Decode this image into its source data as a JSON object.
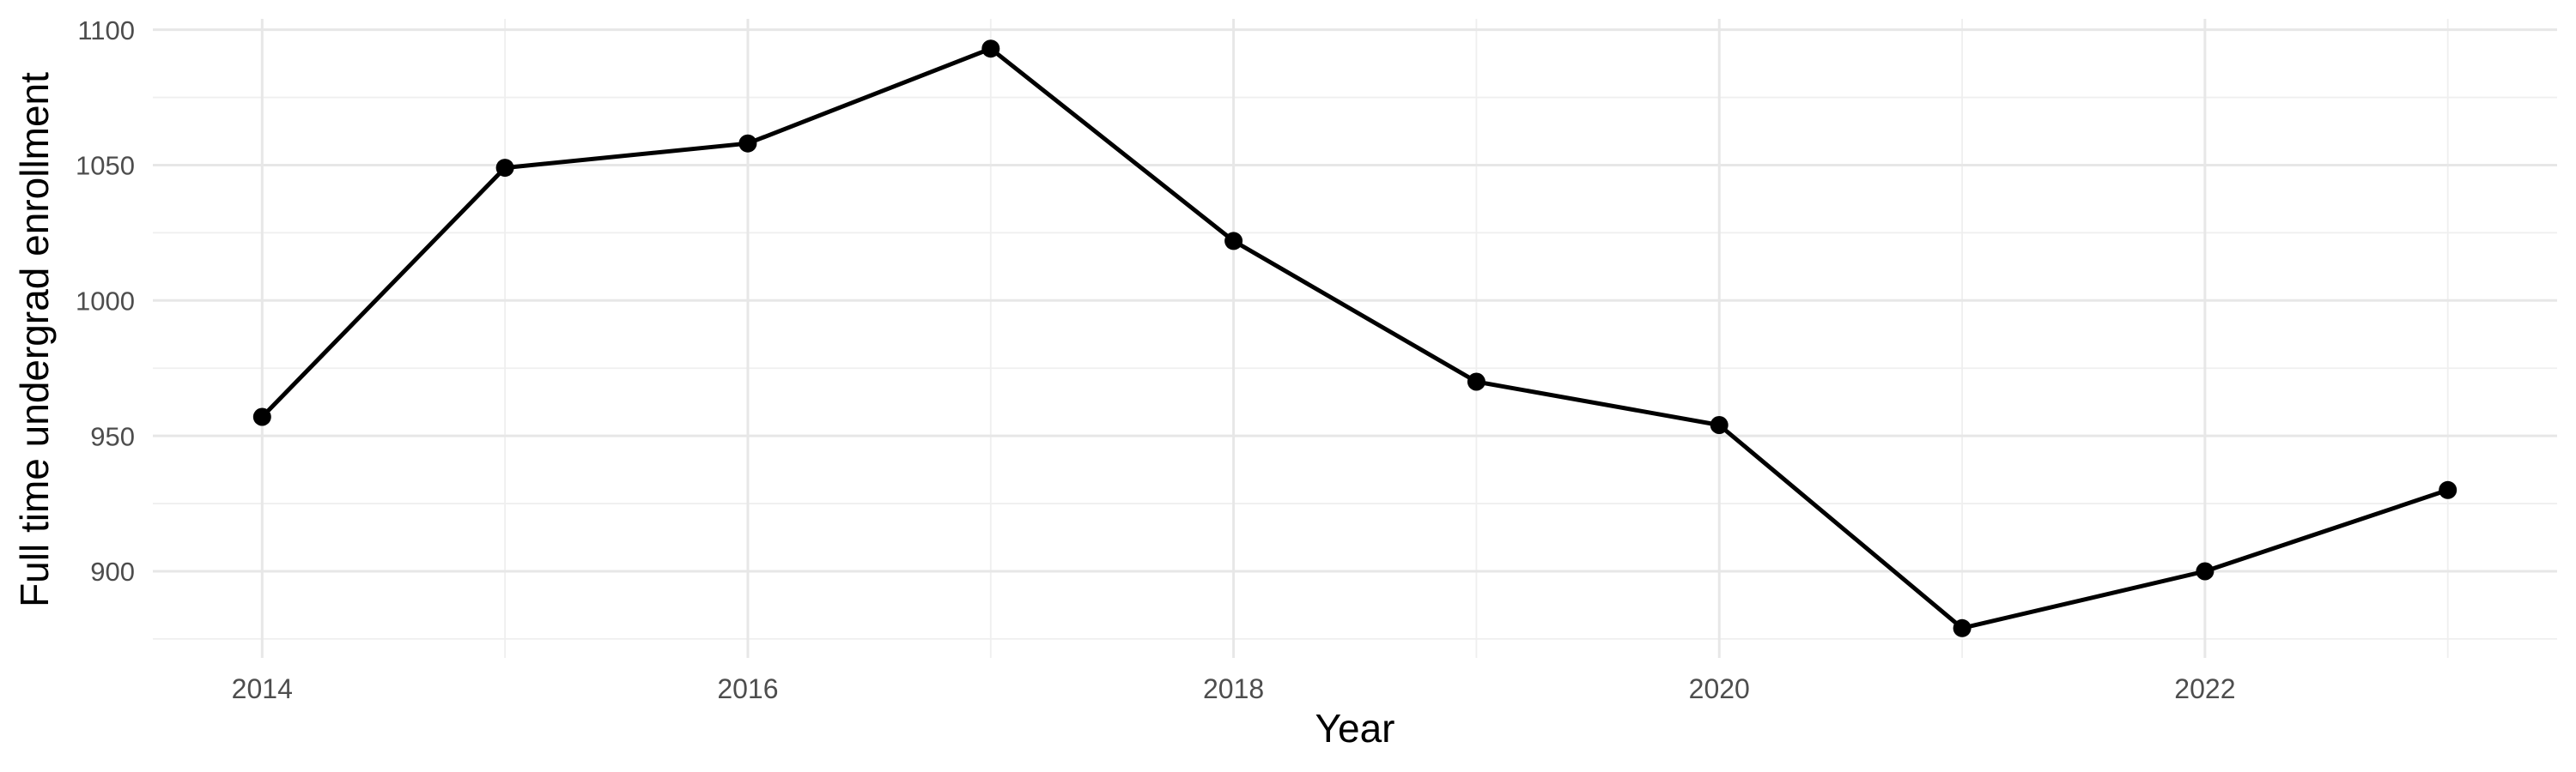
{
  "chart_data": {
    "type": "line",
    "title": "",
    "xlabel": "Year",
    "ylabel": "Full time undergrad enrollment",
    "series": [
      {
        "name": "Full time undergrad enrollment",
        "x": [
          2014,
          2015,
          2016,
          2017,
          2018,
          2019,
          2020,
          2021,
          2022,
          2023
        ],
        "values": [
          957,
          1049,
          1058,
          1093,
          1022,
          970,
          954,
          879,
          900,
          930
        ]
      }
    ],
    "x_major_ticks": [
      2014,
      2016,
      2018,
      2020,
      2022
    ],
    "x_minor_gridlines": [
      2015,
      2017,
      2019,
      2021,
      2023
    ],
    "y_major_ticks": [
      900,
      950,
      1000,
      1050,
      1100
    ],
    "y_minor_gridlines": [
      875,
      925,
      975,
      1025,
      1075
    ],
    "xlim": [
      2013.55,
      2023.45
    ],
    "ylim": [
      868,
      1104
    ],
    "grid": "major-and-minor",
    "legend_position": "none",
    "point_marker": "filled-circle",
    "colors": {
      "line": "#000000",
      "point": "#000000",
      "grid_major": "#e7e7e7",
      "grid_minor": "#efefef",
      "tick_label": "#4d4d4d",
      "axis_title": "#000000",
      "background": "#ffffff"
    }
  }
}
